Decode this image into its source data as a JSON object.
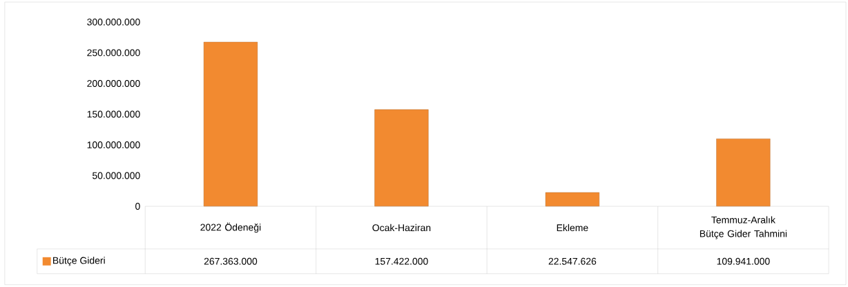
{
  "chart_data": {
    "type": "bar",
    "categories": [
      "2022 Ödeneği",
      "Ocak-Haziran",
      "Ekleme",
      "Temmuz-Aralık Bütçe Gider Tahmini"
    ],
    "series": [
      {
        "name": "Bütçe Gideri",
        "color": "#f28a30",
        "values": [
          267363000,
          157422000,
          22547626,
          109941000
        ],
        "value_labels": [
          "267.363.000",
          "157.422.000",
          "22.547.626",
          "109.941.000"
        ]
      }
    ],
    "ylim": [
      0,
      300000000
    ],
    "yticks": [
      {
        "value": 0,
        "label": "0"
      },
      {
        "value": 50000000,
        "label": "50.000.000"
      },
      {
        "value": 100000000,
        "label": "100.000.000"
      },
      {
        "value": 150000000,
        "label": "150.000.000"
      },
      {
        "value": 200000000,
        "label": "200.000.000"
      },
      {
        "value": 250000000,
        "label": "250.000.000"
      },
      {
        "value": 300000000,
        "label": "300.000.000"
      }
    ],
    "legend": "bottom left"
  }
}
